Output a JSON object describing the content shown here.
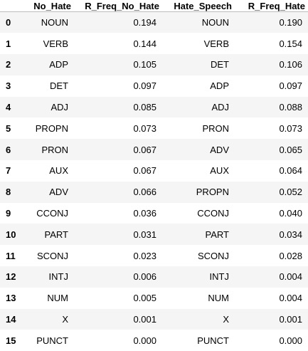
{
  "table": {
    "columns": [
      "",
      "No_Hate",
      "R_Freq_No_Hate",
      "Hate_Speech",
      "R_Freq_Hate"
    ],
    "rows": [
      {
        "index": "0",
        "no_hate": "NOUN",
        "r_freq_no_hate": "0.194",
        "hate_speech": "NOUN",
        "r_freq_hate": "0.190"
      },
      {
        "index": "1",
        "no_hate": "VERB",
        "r_freq_no_hate": "0.144",
        "hate_speech": "VERB",
        "r_freq_hate": "0.154"
      },
      {
        "index": "2",
        "no_hate": "ADP",
        "r_freq_no_hate": "0.105",
        "hate_speech": "DET",
        "r_freq_hate": "0.106"
      },
      {
        "index": "3",
        "no_hate": "DET",
        "r_freq_no_hate": "0.097",
        "hate_speech": "ADP",
        "r_freq_hate": "0.097"
      },
      {
        "index": "4",
        "no_hate": "ADJ",
        "r_freq_no_hate": "0.085",
        "hate_speech": "ADJ",
        "r_freq_hate": "0.088"
      },
      {
        "index": "5",
        "no_hate": "PROPN",
        "r_freq_no_hate": "0.073",
        "hate_speech": "PRON",
        "r_freq_hate": "0.073"
      },
      {
        "index": "6",
        "no_hate": "PRON",
        "r_freq_no_hate": "0.067",
        "hate_speech": "ADV",
        "r_freq_hate": "0.065"
      },
      {
        "index": "7",
        "no_hate": "AUX",
        "r_freq_no_hate": "0.067",
        "hate_speech": "AUX",
        "r_freq_hate": "0.064"
      },
      {
        "index": "8",
        "no_hate": "ADV",
        "r_freq_no_hate": "0.066",
        "hate_speech": "PROPN",
        "r_freq_hate": "0.052"
      },
      {
        "index": "9",
        "no_hate": "CCONJ",
        "r_freq_no_hate": "0.036",
        "hate_speech": "CCONJ",
        "r_freq_hate": "0.040"
      },
      {
        "index": "10",
        "no_hate": "PART",
        "r_freq_no_hate": "0.031",
        "hate_speech": "PART",
        "r_freq_hate": "0.034"
      },
      {
        "index": "11",
        "no_hate": "SCONJ",
        "r_freq_no_hate": "0.023",
        "hate_speech": "SCONJ",
        "r_freq_hate": "0.028"
      },
      {
        "index": "12",
        "no_hate": "INTJ",
        "r_freq_no_hate": "0.006",
        "hate_speech": "INTJ",
        "r_freq_hate": "0.004"
      },
      {
        "index": "13",
        "no_hate": "NUM",
        "r_freq_no_hate": "0.005",
        "hate_speech": "NUM",
        "r_freq_hate": "0.004"
      },
      {
        "index": "14",
        "no_hate": "X",
        "r_freq_no_hate": "0.001",
        "hate_speech": "X",
        "r_freq_hate": "0.001"
      },
      {
        "index": "15",
        "no_hate": "PUNCT",
        "r_freq_no_hate": "0.000",
        "hate_speech": "PUNCT",
        "r_freq_hate": "0.000"
      }
    ]
  },
  "colors": {
    "stripe_row": "#f5f5f5",
    "plain_row": "#ffffff",
    "header_rule": "#bdbdbd",
    "text": "#000000"
  }
}
